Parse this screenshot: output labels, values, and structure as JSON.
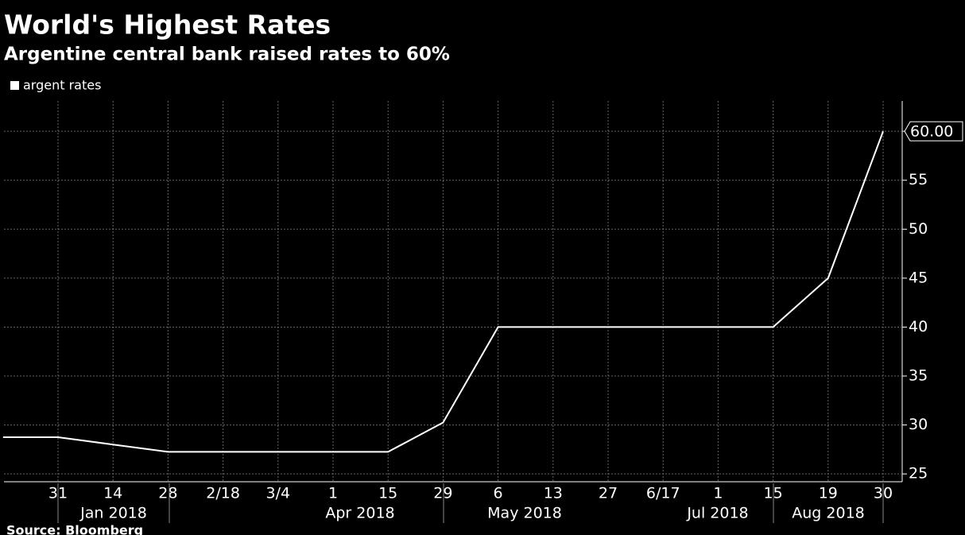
{
  "chart_data": {
    "type": "line",
    "title": "World's Highest Rates",
    "subtitle": "Argentine central bank raised rates to 60%",
    "source": "Source: Bloomberg",
    "categories": [
      null,
      "31",
      "14",
      "28",
      "2/18",
      "3/4",
      "1",
      "15",
      "29",
      "6",
      "13",
      "27",
      "6/17",
      "1",
      "15",
      "19",
      "30"
    ],
    "x_groups": [
      "Jan 2018",
      "Apr 2018",
      "May 2018",
      "Jul 2018",
      "Aug 2018"
    ],
    "series": [
      {
        "name": "argent rates",
        "color": "#ffffff",
        "values": [
          28.75,
          28.75,
          28.0,
          27.25,
          27.25,
          27.25,
          27.25,
          27.25,
          30.25,
          40,
          40,
          40,
          40,
          40,
          40,
          45,
          60
        ],
        "value_labels": [
          null,
          null,
          null,
          null,
          null,
          null,
          null,
          null,
          null,
          null,
          null,
          null,
          null,
          null,
          null,
          null,
          "60.00"
        ]
      }
    ],
    "ylim": [
      24.2,
      63.1
    ],
    "yticks": [
      25,
      30,
      35,
      40,
      45,
      50,
      55,
      60
    ],
    "grid": true
  }
}
